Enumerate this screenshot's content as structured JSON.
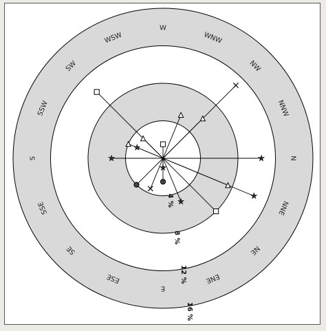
{
  "chart_data": {
    "type": "polar",
    "title": "",
    "rotation_deg": 90,
    "directions": [
      "N",
      "NNE",
      "NE",
      "ENE",
      "E",
      "ESE",
      "SE",
      "SSE",
      "S",
      "SSW",
      "SW",
      "WSW",
      "W",
      "WNW",
      "NW",
      "NNW"
    ],
    "rings": [
      {
        "value": 4,
        "label": "4 %"
      },
      {
        "value": 8,
        "label": "8 %"
      },
      {
        "value": 12,
        "label": "12 %"
      },
      {
        "value": 16,
        "label": "16 %"
      }
    ],
    "r_max": 16,
    "colors": {
      "band": "#d9d9d9",
      "line": "#000000",
      "background": "#ffffff"
    },
    "series": [
      {
        "symbol": "triangle",
        "points": [
          {
            "dir": "NNE",
            "value": 7.5
          },
          {
            "dir": "NW",
            "value": 6
          },
          {
            "dir": "WNW",
            "value": 5
          },
          {
            "dir": "SSW",
            "value": 4
          },
          {
            "dir": "SW",
            "value": 3
          }
        ]
      },
      {
        "symbol": "star",
        "points": [
          {
            "dir": "N",
            "value": 10.5
          },
          {
            "dir": "NNE",
            "value": 10.5
          },
          {
            "dir": "ENE",
            "value": 5
          },
          {
            "dir": "E",
            "value": 1
          },
          {
            "dir": "S",
            "value": 5.5
          },
          {
            "dir": "SSW",
            "value": 3
          }
        ]
      },
      {
        "symbol": "square",
        "points": [
          {
            "dir": "NE",
            "value": 8
          },
          {
            "dir": "SW",
            "value": 10
          },
          {
            "dir": "W",
            "value": 1.5
          }
        ]
      },
      {
        "symbol": "circle",
        "points": [
          {
            "dir": "SE",
            "value": 4
          },
          {
            "dir": "E",
            "value": 2.5
          }
        ]
      },
      {
        "symbol": "x",
        "points": [
          {
            "dir": "NW",
            "value": 11
          },
          {
            "dir": "ESE",
            "value": 3.5
          }
        ]
      }
    ]
  }
}
